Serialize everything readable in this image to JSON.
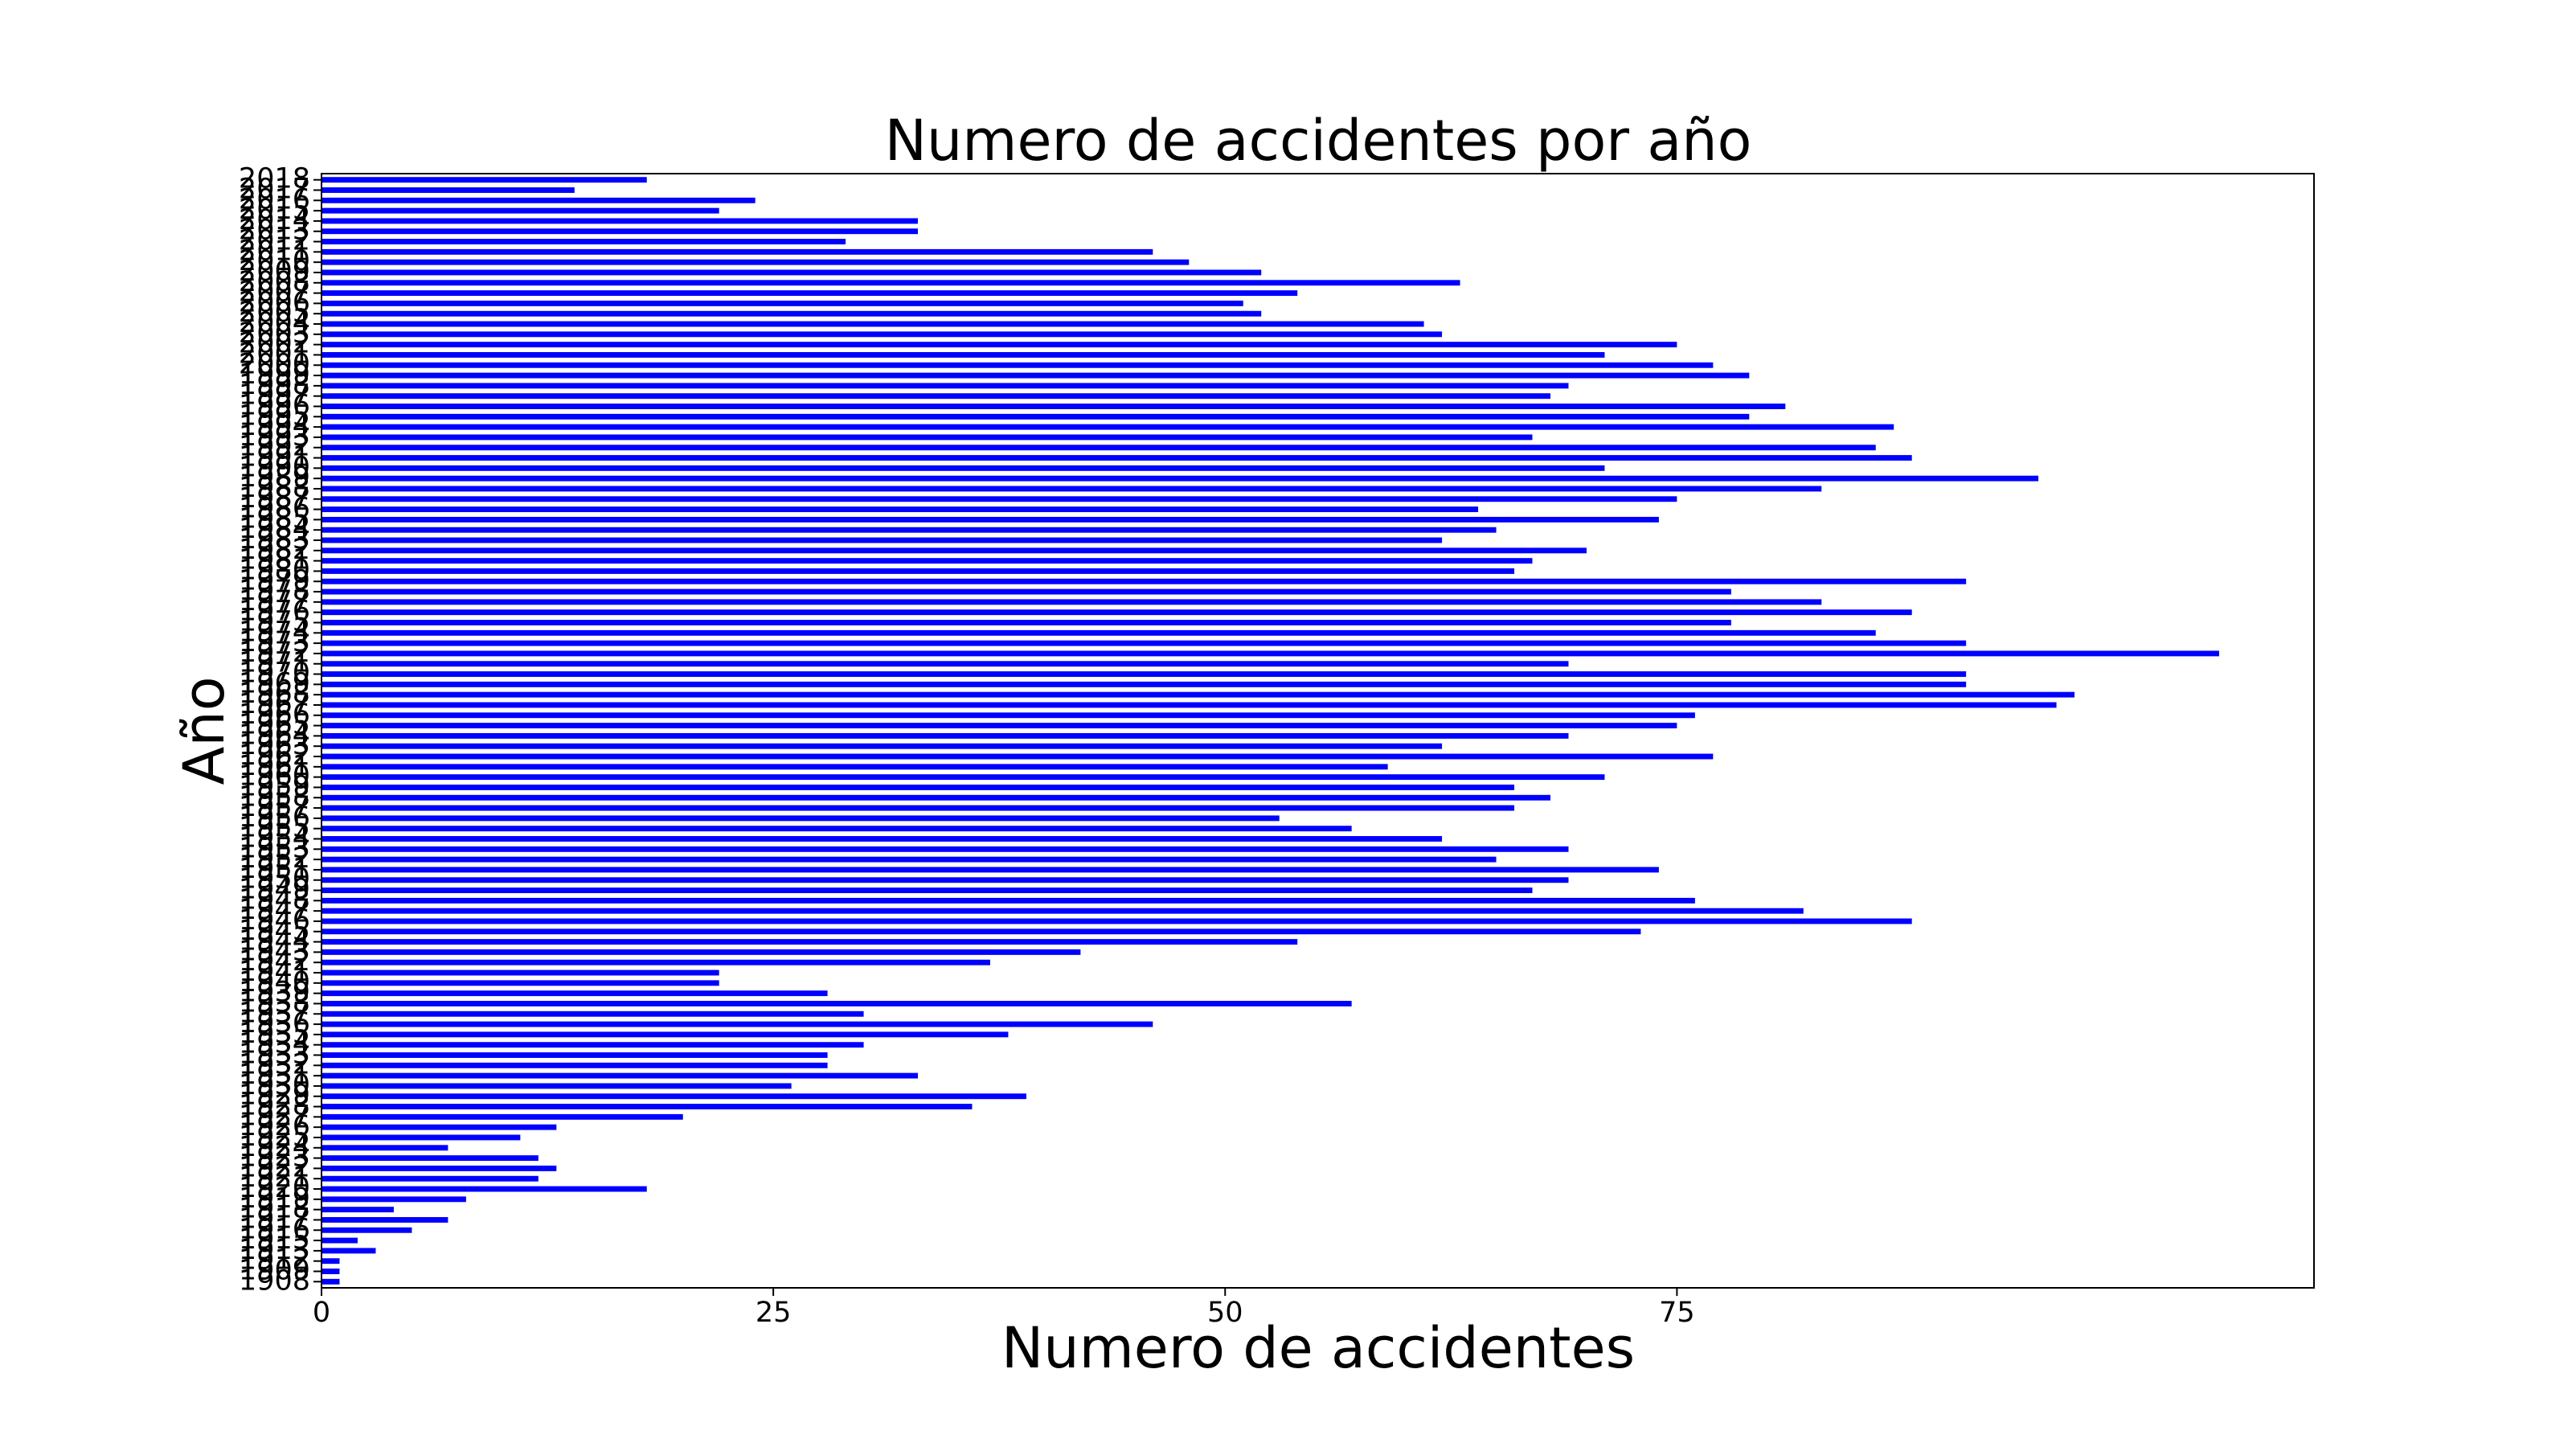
{
  "chart_data": {
    "type": "barh",
    "title": "Numero de accidentes por año",
    "xlabel": "Numero de accidentes",
    "ylabel": "Año",
    "categories": [
      "1908",
      "1909",
      "1912",
      "1913",
      "1915",
      "1916",
      "1917",
      "1918",
      "1919",
      "1920",
      "1921",
      "1922",
      "1923",
      "1924",
      "1925",
      "1926",
      "1927",
      "1928",
      "1929",
      "1930",
      "1931",
      "1932",
      "1933",
      "1934",
      "1935",
      "1936",
      "1937",
      "1938",
      "1939",
      "1940",
      "1941",
      "1942",
      "1943",
      "1944",
      "1945",
      "1946",
      "1947",
      "1948",
      "1949",
      "1950",
      "1951",
      "1952",
      "1953",
      "1954",
      "1955",
      "1956",
      "1957",
      "1958",
      "1959",
      "1960",
      "1961",
      "1962",
      "1963",
      "1964",
      "1965",
      "1966",
      "1967",
      "1968",
      "1969",
      "1970",
      "1971",
      "1972",
      "1973",
      "1974",
      "1975",
      "1976",
      "1977",
      "1978",
      "1979",
      "1980",
      "1981",
      "1982",
      "1983",
      "1984",
      "1985",
      "1986",
      "1987",
      "1988",
      "1989",
      "1990",
      "1991",
      "1992",
      "1993",
      "1994",
      "1995",
      "1996",
      "1997",
      "1998",
      "1999",
      "2000",
      "2001",
      "2002",
      "2003",
      "2004",
      "2005",
      "2006",
      "2007",
      "2008",
      "2009",
      "2010",
      "2011",
      "2012",
      "2013",
      "2014",
      "2015",
      "2016",
      "2017",
      "2018"
    ],
    "values": [
      1,
      1,
      1,
      3,
      2,
      5,
      7,
      4,
      8,
      18,
      12,
      13,
      12,
      7,
      11,
      13,
      20,
      36,
      39,
      26,
      33,
      28,
      28,
      30,
      38,
      46,
      30,
      57,
      28,
      22,
      22,
      37,
      42,
      54,
      73,
      88,
      82,
      76,
      67,
      69,
      74,
      65,
      69,
      62,
      57,
      53,
      66,
      68,
      66,
      71,
      59,
      77,
      62,
      69,
      75,
      76,
      96,
      97,
      91,
      91,
      69,
      105,
      91,
      86,
      78,
      88,
      83,
      78,
      91,
      66,
      67,
      70,
      62,
      65,
      74,
      64,
      75,
      83,
      95,
      71,
      88,
      86,
      67,
      87,
      79,
      81,
      68,
      69,
      79,
      77,
      71,
      75,
      62,
      61,
      52,
      51,
      54,
      63,
      52,
      48,
      46,
      29,
      33,
      33,
      22,
      24,
      14,
      18
    ],
    "color": "#0000ff",
    "xlim": [
      0,
      110.25
    ],
    "xticks": [
      0,
      25,
      50,
      75
    ],
    "grid": false
  }
}
